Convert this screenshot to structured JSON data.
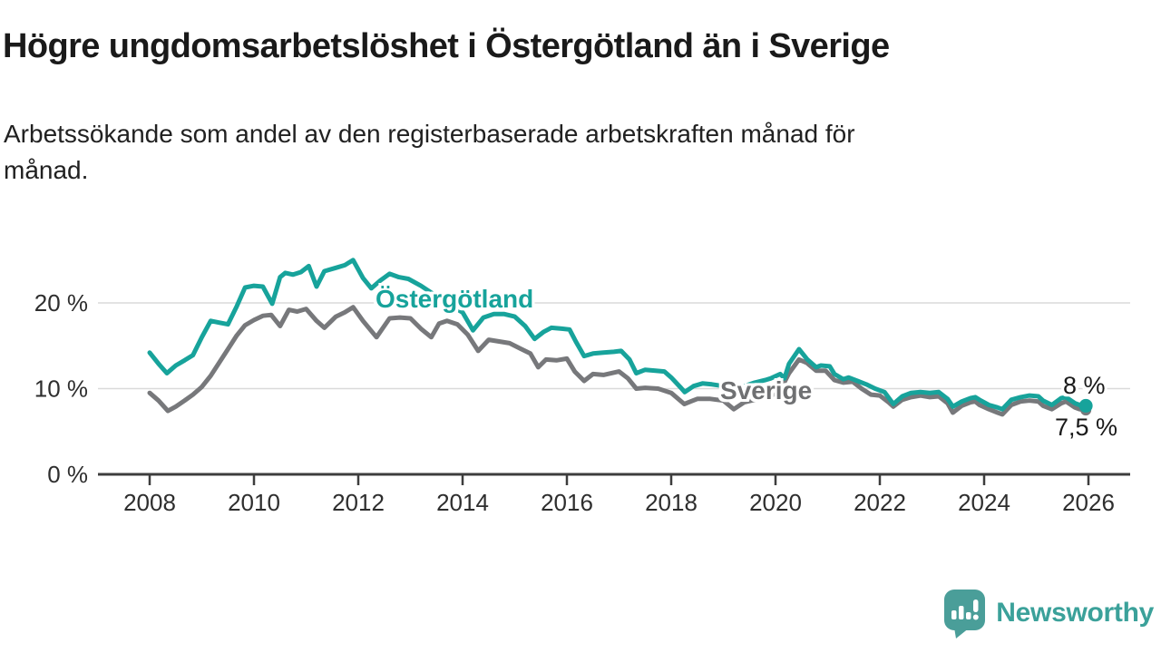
{
  "header": {
    "title": "Högre ungdomsarbetslöshet i Östergötland än i Sverige",
    "subtitle": {
      "line1": "Arbetssökande som andel av den registerbaserade arbetskraften månad för",
      "line2": "månad."
    }
  },
  "branding": {
    "logo_text": "Newsworthy",
    "logo_icon": "speech-bubble-bar-chart-icon",
    "logo_color": "#4a9e99"
  },
  "colors": {
    "accent_teal": "#17a39b",
    "series_gray": "#77787b",
    "grid": "#dadada",
    "axis": "#3d3d3d",
    "text": "#1a1a1a"
  },
  "chart_data": {
    "type": "line",
    "title": "Högre ungdomsarbetslöshet i Östergötland än i Sverige",
    "subtitle": "Arbetssökande som andel av den registerbaserade arbetskraften månad för månad.",
    "xlabel": "",
    "ylabel": "",
    "xlim": [
      2007,
      2026.8
    ],
    "ylim": [
      0,
      27
    ],
    "grid": "horizontal",
    "legend_position": "inline-labels",
    "x_ticks": [
      2008,
      2010,
      2012,
      2014,
      2016,
      2018,
      2020,
      2022,
      2024,
      2026
    ],
    "y_ticks": [
      {
        "value": 0,
        "label": "0 %"
      },
      {
        "value": 10,
        "label": "10 %"
      },
      {
        "value": 20,
        "label": "20 %"
      }
    ],
    "series": [
      {
        "name": "Sverige",
        "color": "#77787b",
        "end_label": "7,5 %",
        "end_value": 7.5,
        "points": [
          [
            2008.0,
            9.5
          ],
          [
            2008.17,
            8.6
          ],
          [
            2008.35,
            7.4
          ],
          [
            2008.5,
            7.9
          ],
          [
            2008.67,
            8.6
          ],
          [
            2008.83,
            9.3
          ],
          [
            2009.0,
            10.2
          ],
          [
            2009.17,
            11.5
          ],
          [
            2009.33,
            13.0
          ],
          [
            2009.5,
            14.6
          ],
          [
            2009.67,
            16.2
          ],
          [
            2009.83,
            17.4
          ],
          [
            2010.0,
            18.0
          ],
          [
            2010.17,
            18.5
          ],
          [
            2010.33,
            18.6
          ],
          [
            2010.5,
            17.3
          ],
          [
            2010.67,
            19.2
          ],
          [
            2010.83,
            19.0
          ],
          [
            2011.0,
            19.3
          ],
          [
            2011.2,
            17.9
          ],
          [
            2011.35,
            17.1
          ],
          [
            2011.57,
            18.4
          ],
          [
            2011.74,
            18.9
          ],
          [
            2011.9,
            19.5
          ],
          [
            2012.09,
            17.9
          ],
          [
            2012.35,
            16.0
          ],
          [
            2012.6,
            18.2
          ],
          [
            2012.8,
            18.3
          ],
          [
            2013.0,
            18.2
          ],
          [
            2013.2,
            17.0
          ],
          [
            2013.4,
            16.0
          ],
          [
            2013.55,
            17.6
          ],
          [
            2013.7,
            17.9
          ],
          [
            2013.9,
            17.5
          ],
          [
            2014.1,
            16.3
          ],
          [
            2014.3,
            14.4
          ],
          [
            2014.5,
            15.7
          ],
          [
            2014.7,
            15.5
          ],
          [
            2014.9,
            15.3
          ],
          [
            2015.1,
            14.7
          ],
          [
            2015.3,
            14.1
          ],
          [
            2015.45,
            12.5
          ],
          [
            2015.6,
            13.4
          ],
          [
            2015.8,
            13.3
          ],
          [
            2016.0,
            13.5
          ],
          [
            2016.15,
            12.0
          ],
          [
            2016.33,
            10.9
          ],
          [
            2016.5,
            11.7
          ],
          [
            2016.7,
            11.6
          ],
          [
            2017.0,
            12.0
          ],
          [
            2017.17,
            11.2
          ],
          [
            2017.33,
            10.0
          ],
          [
            2017.5,
            10.1
          ],
          [
            2017.75,
            10.0
          ],
          [
            2018.0,
            9.5
          ],
          [
            2018.25,
            8.2
          ],
          [
            2018.5,
            8.8
          ],
          [
            2018.75,
            8.8
          ],
          [
            2019.0,
            8.6
          ],
          [
            2019.2,
            7.6
          ],
          [
            2019.4,
            8.4
          ],
          [
            2019.6,
            8.7
          ],
          [
            2019.8,
            9.0
          ],
          [
            2019.95,
            9.3
          ],
          [
            2020.09,
            9.8
          ],
          [
            2020.26,
            11.8
          ],
          [
            2020.45,
            13.4
          ],
          [
            2020.6,
            13.0
          ],
          [
            2020.78,
            12.1
          ],
          [
            2020.96,
            12.1
          ],
          [
            2021.13,
            11.0
          ],
          [
            2021.3,
            10.7
          ],
          [
            2021.48,
            10.8
          ],
          [
            2021.65,
            10.0
          ],
          [
            2021.83,
            9.3
          ],
          [
            2022.0,
            9.2
          ],
          [
            2022.17,
            8.4
          ],
          [
            2022.26,
            7.9
          ],
          [
            2022.43,
            8.7
          ],
          [
            2022.6,
            9.0
          ],
          [
            2022.78,
            9.2
          ],
          [
            2022.96,
            9.0
          ],
          [
            2023.13,
            9.1
          ],
          [
            2023.3,
            8.3
          ],
          [
            2023.4,
            7.2
          ],
          [
            2023.57,
            8.0
          ],
          [
            2023.74,
            8.4
          ],
          [
            2023.83,
            8.5
          ],
          [
            2023.91,
            8.1
          ],
          [
            2024.09,
            7.6
          ],
          [
            2024.26,
            7.2
          ],
          [
            2024.35,
            7.0
          ],
          [
            2024.52,
            8.1
          ],
          [
            2024.7,
            8.5
          ],
          [
            2024.87,
            8.6
          ],
          [
            2025.04,
            8.5
          ],
          [
            2025.13,
            8.0
          ],
          [
            2025.3,
            7.6
          ],
          [
            2025.48,
            8.3
          ],
          [
            2025.57,
            8.5
          ],
          [
            2025.74,
            7.8
          ],
          [
            2025.83,
            7.6
          ],
          [
            2025.95,
            7.5
          ]
        ]
      },
      {
        "name": "Östergötland",
        "color": "#17a39b",
        "end_label": "8 %",
        "end_value": 8,
        "points": [
          [
            2008.0,
            14.2
          ],
          [
            2008.17,
            12.9
          ],
          [
            2008.33,
            11.8
          ],
          [
            2008.5,
            12.7
          ],
          [
            2008.67,
            13.3
          ],
          [
            2008.83,
            13.9
          ],
          [
            2009.0,
            16.0
          ],
          [
            2009.17,
            17.9
          ],
          [
            2009.33,
            17.7
          ],
          [
            2009.5,
            17.5
          ],
          [
            2009.67,
            19.6
          ],
          [
            2009.83,
            21.8
          ],
          [
            2010.0,
            22.0
          ],
          [
            2010.17,
            21.9
          ],
          [
            2010.35,
            19.9
          ],
          [
            2010.5,
            23.0
          ],
          [
            2010.6,
            23.5
          ],
          [
            2010.75,
            23.3
          ],
          [
            2010.9,
            23.6
          ],
          [
            2011.05,
            24.3
          ],
          [
            2011.2,
            21.9
          ],
          [
            2011.35,
            23.7
          ],
          [
            2011.57,
            24.1
          ],
          [
            2011.74,
            24.4
          ],
          [
            2011.9,
            25.0
          ],
          [
            2012.09,
            22.9
          ],
          [
            2012.25,
            21.7
          ],
          [
            2012.42,
            22.6
          ],
          [
            2012.6,
            23.4
          ],
          [
            2012.78,
            23.0
          ],
          [
            2012.96,
            22.8
          ],
          [
            2013.2,
            22.0
          ],
          [
            2013.4,
            21.2
          ],
          [
            2013.6,
            20.4
          ],
          [
            2013.8,
            19.6
          ],
          [
            2014.0,
            18.9
          ],
          [
            2014.2,
            16.8
          ],
          [
            2014.4,
            18.3
          ],
          [
            2014.6,
            18.7
          ],
          [
            2014.8,
            18.7
          ],
          [
            2015.0,
            18.4
          ],
          [
            2015.2,
            17.3
          ],
          [
            2015.38,
            15.8
          ],
          [
            2015.55,
            16.6
          ],
          [
            2015.7,
            17.1
          ],
          [
            2015.9,
            17.0
          ],
          [
            2016.05,
            16.9
          ],
          [
            2016.17,
            15.5
          ],
          [
            2016.33,
            13.8
          ],
          [
            2016.5,
            14.1
          ],
          [
            2016.7,
            14.2
          ],
          [
            2016.9,
            14.3
          ],
          [
            2017.04,
            14.4
          ],
          [
            2017.2,
            13.4
          ],
          [
            2017.33,
            11.8
          ],
          [
            2017.5,
            12.2
          ],
          [
            2017.7,
            12.1
          ],
          [
            2017.87,
            12.0
          ],
          [
            2018.0,
            11.3
          ],
          [
            2018.17,
            10.2
          ],
          [
            2018.26,
            9.6
          ],
          [
            2018.43,
            10.3
          ],
          [
            2018.6,
            10.6
          ],
          [
            2018.78,
            10.5
          ],
          [
            2019.0,
            10.3
          ],
          [
            2019.2,
            9.5
          ],
          [
            2019.4,
            10.3
          ],
          [
            2019.6,
            10.7
          ],
          [
            2019.8,
            11.0
          ],
          [
            2019.91,
            11.2
          ],
          [
            2020.09,
            11.7
          ],
          [
            2020.17,
            11.2
          ],
          [
            2020.26,
            12.9
          ],
          [
            2020.45,
            14.6
          ],
          [
            2020.61,
            13.4
          ],
          [
            2020.78,
            12.5
          ],
          [
            2020.87,
            12.7
          ],
          [
            2021.04,
            12.6
          ],
          [
            2021.13,
            11.7
          ],
          [
            2021.3,
            11.1
          ],
          [
            2021.4,
            11.3
          ],
          [
            2021.57,
            10.9
          ],
          [
            2021.74,
            10.5
          ],
          [
            2021.91,
            10.0
          ],
          [
            2022.09,
            9.6
          ],
          [
            2022.26,
            8.2
          ],
          [
            2022.43,
            9.1
          ],
          [
            2022.6,
            9.5
          ],
          [
            2022.78,
            9.6
          ],
          [
            2022.96,
            9.5
          ],
          [
            2023.13,
            9.6
          ],
          [
            2023.3,
            8.8
          ],
          [
            2023.4,
            7.9
          ],
          [
            2023.57,
            8.5
          ],
          [
            2023.74,
            8.9
          ],
          [
            2023.83,
            9.0
          ],
          [
            2023.91,
            8.7
          ],
          [
            2024.09,
            8.1
          ],
          [
            2024.26,
            7.8
          ],
          [
            2024.35,
            7.6
          ],
          [
            2024.52,
            8.7
          ],
          [
            2024.7,
            9.0
          ],
          [
            2024.87,
            9.2
          ],
          [
            2025.04,
            9.1
          ],
          [
            2025.13,
            8.6
          ],
          [
            2025.3,
            8.1
          ],
          [
            2025.48,
            8.9
          ],
          [
            2025.57,
            9.0
          ],
          [
            2025.74,
            8.3
          ],
          [
            2025.83,
            8.1
          ],
          [
            2025.95,
            8.0
          ]
        ]
      }
    ]
  }
}
